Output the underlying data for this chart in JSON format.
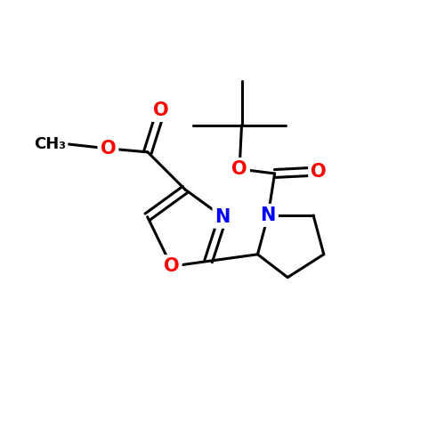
{
  "background_color": "#ffffff",
  "bond_color": "#000000",
  "atom_colors": {
    "O": "#ff0000",
    "N": "#0000ff",
    "C": "#000000"
  },
  "bond_width": 2.2,
  "font_size_atoms": 15,
  "fig_size": [
    5.0,
    5.0
  ],
  "dpi": 100
}
